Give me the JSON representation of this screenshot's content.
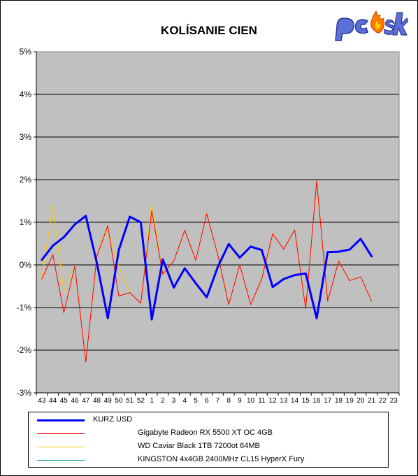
{
  "chart_data": {
    "type": "line",
    "title": "KOLÍSANIE CIEN",
    "xlabel": "",
    "ylabel": "",
    "categories": [
      "43",
      "44",
      "45",
      "46",
      "47",
      "48",
      "49",
      "50",
      "51",
      "52",
      "1",
      "2",
      "3",
      "4",
      "5",
      "6",
      "7",
      "8",
      "9",
      "10",
      "11",
      "12",
      "13",
      "14",
      "15",
      "16",
      "17",
      "18",
      "19",
      "20",
      "21",
      "22",
      "23"
    ],
    "y_ticks": [
      "5%",
      "4%",
      "3%",
      "2%",
      "1%",
      "0%",
      "-1%",
      "-2%",
      "-3%"
    ],
    "ylim": [
      -3,
      5
    ],
    "grid": true,
    "legend_position": "bottom",
    "series": [
      {
        "name": "KURZ USD",
        "color": "#0000ff",
        "width": 3,
        "values": [
          0.12,
          0.45,
          0.65,
          0.95,
          1.15,
          0.05,
          -1.25,
          0.35,
          1.13,
          1.0,
          -1.28,
          0.13,
          -0.53,
          -0.08,
          -0.43,
          -0.76,
          -0.05,
          0.49,
          0.17,
          0.43,
          0.35,
          -0.52,
          -0.33,
          -0.24,
          -0.2,
          -1.25,
          0.3,
          0.31,
          0.36,
          0.61,
          0.2,
          null,
          null
        ]
      },
      {
        "name": "Gigabyte Radeon RX 5500 XT OC 4GB",
        "color": "#ff0000",
        "width": 1,
        "values": [
          -0.33,
          0.24,
          -1.12,
          -0.03,
          -2.28,
          0.2,
          0.92,
          -0.73,
          -0.65,
          -0.9,
          1.27,
          -0.22,
          0.09,
          0.81,
          0.11,
          1.2,
          0.24,
          -0.93,
          0.0,
          -0.93,
          -0.33,
          0.73,
          0.37,
          0.82,
          -1.03,
          1.97,
          -0.85,
          0.09,
          -0.37,
          -0.28,
          -0.85,
          null,
          null
        ]
      },
      {
        "name": "WD Caviar Black 1TB 7200ot 64MB",
        "color": "#ffcc00",
        "width": 1,
        "values": [
          -0.33,
          1.39,
          -0.62,
          -0.03,
          -2.28,
          0.2,
          0.85,
          -0.04,
          -0.65,
          -0.9,
          1.44,
          -0.22,
          0.09,
          0.81,
          0.11,
          1.2,
          0.24,
          -0.93,
          0.0,
          -0.93,
          -0.33,
          0.73,
          0.37,
          0.82,
          -1.03,
          1.97,
          -0.85,
          0.09,
          -0.37,
          -0.28,
          -0.85,
          null,
          null
        ]
      },
      {
        "name": "KINGSTON 4x4GB 2400MHz CL15 HyperX Fury",
        "color": "#009999",
        "width": 1,
        "values": [
          null,
          null,
          null,
          null,
          null,
          null,
          null,
          null,
          null,
          null,
          null,
          null,
          null,
          null,
          null,
          null,
          null,
          null,
          null,
          null,
          null,
          null,
          null,
          null,
          null,
          null,
          null,
          null,
          null,
          null,
          null,
          null,
          null
        ]
      }
    ]
  },
  "logo": {
    "text_pc": "pc",
    "text_sk": "sk",
    "pc_color": "#5b6fd6",
    "sk_color": "#5b6fd6",
    "flame_color": "#ff7a00"
  }
}
